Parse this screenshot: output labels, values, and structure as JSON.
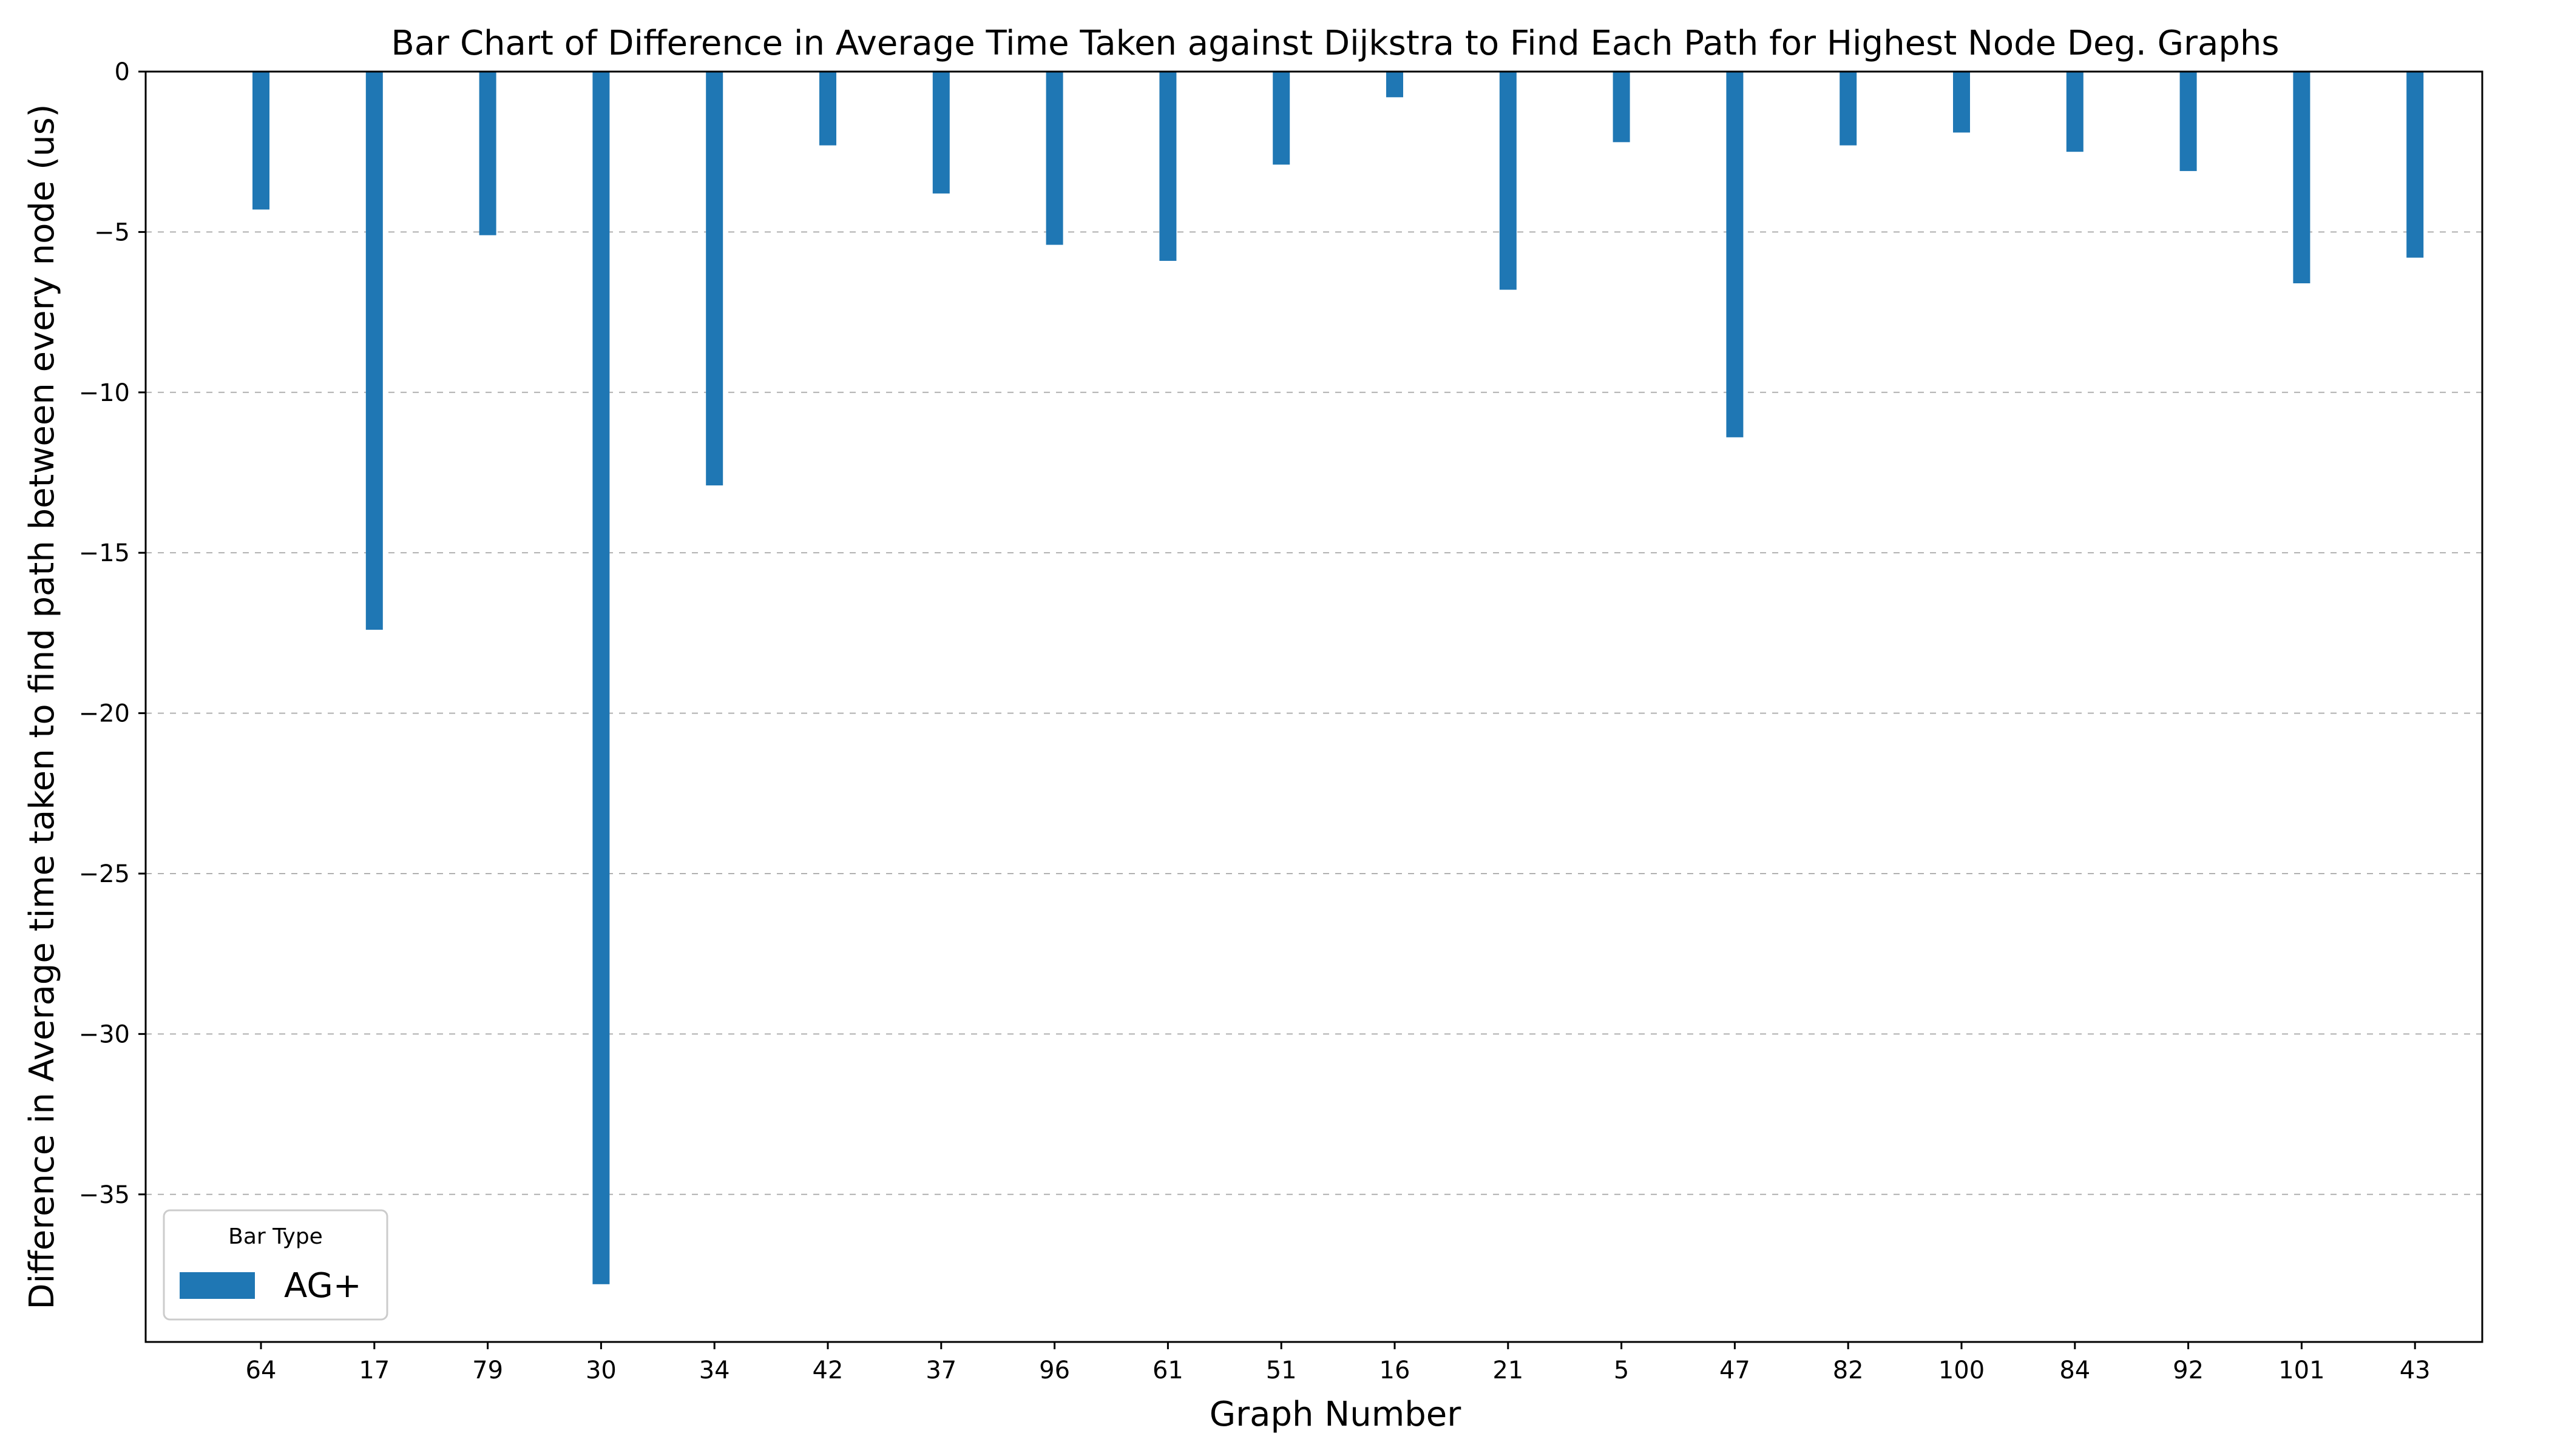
{
  "chart_data": {
    "type": "bar",
    "title": "Bar Chart of Difference in Average Time Taken against Dijkstra to Find Each Path for Highest Node Deg. Graphs",
    "xlabel": "Graph Number",
    "ylabel": "Difference in Average time taken to find path between every node (us)",
    "categories": [
      "64",
      "17",
      "79",
      "30",
      "34",
      "42",
      "37",
      "96",
      "61",
      "51",
      "16",
      "21",
      "5",
      "47",
      "82",
      "100",
      "84",
      "92",
      "101",
      "43"
    ],
    "series": [
      {
        "name": "AG+",
        "color": "#1f77b4",
        "values": [
          -4.3,
          -17.4,
          -5.1,
          -37.8,
          -12.9,
          -2.3,
          -3.8,
          -5.4,
          -5.9,
          -2.9,
          -0.8,
          -6.8,
          -2.2,
          -11.4,
          -2.3,
          -1.9,
          -2.5,
          -3.1,
          -6.6,
          -5.8
        ]
      }
    ],
    "ylim": [
      -39.6,
      0
    ],
    "yticks": [
      0,
      -5,
      -10,
      -15,
      -20,
      -25,
      -30,
      -35
    ],
    "grid": {
      "y": true,
      "x": false,
      "style": "dashed",
      "color": "#b0b0b0"
    },
    "legend": {
      "title": "Bar Type",
      "placement": "lower-left"
    }
  }
}
